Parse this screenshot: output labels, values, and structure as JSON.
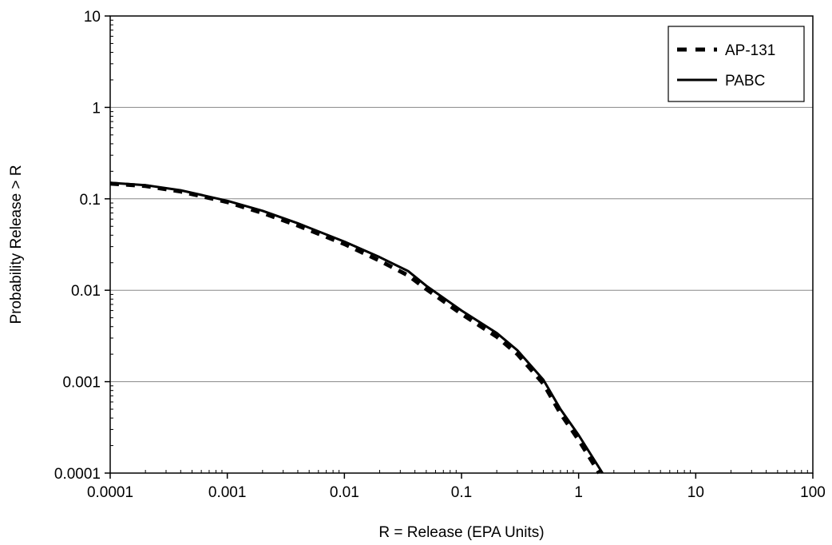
{
  "chart_data": {
    "type": "line",
    "xlabel": "R = Release (EPA Units)",
    "ylabel": "Probability Release > R",
    "x_scale": "log",
    "y_scale": "log",
    "xlim": [
      0.0001,
      100
    ],
    "ylim": [
      0.0001,
      10
    ],
    "x_ticks": [
      "0.0001",
      "0.001",
      "0.01",
      "0.1",
      "1",
      "10",
      "100"
    ],
    "y_ticks": [
      "0.0001",
      "0.001",
      "0.01",
      "0.1",
      "1",
      "10"
    ],
    "grid": "horizontal major gridlines",
    "legend_position": "top-right",
    "series": [
      {
        "name": "AP-131",
        "style": "dashed",
        "color": "#000000",
        "points": [
          [
            0.0001,
            0.147
          ],
          [
            0.0002,
            0.138
          ],
          [
            0.0004,
            0.12
          ],
          [
            0.001,
            0.092
          ],
          [
            0.002,
            0.07
          ],
          [
            0.004,
            0.051
          ],
          [
            0.01,
            0.032
          ],
          [
            0.02,
            0.021
          ],
          [
            0.035,
            0.0145
          ],
          [
            0.05,
            0.0103
          ],
          [
            0.1,
            0.0055
          ],
          [
            0.2,
            0.0031
          ],
          [
            0.3,
            0.002
          ],
          [
            0.5,
            0.00095
          ],
          [
            0.7,
            0.00045
          ],
          [
            1.0,
            0.00023
          ],
          [
            1.5,
            0.0001
          ]
        ]
      },
      {
        "name": "PABC",
        "style": "solid",
        "color": "#000000",
        "points": [
          [
            0.0001,
            0.15
          ],
          [
            0.0002,
            0.141
          ],
          [
            0.0004,
            0.124
          ],
          [
            0.001,
            0.095
          ],
          [
            0.002,
            0.074
          ],
          [
            0.004,
            0.054
          ],
          [
            0.01,
            0.034
          ],
          [
            0.02,
            0.023
          ],
          [
            0.035,
            0.0162
          ],
          [
            0.05,
            0.0112
          ],
          [
            0.1,
            0.006
          ],
          [
            0.2,
            0.0034
          ],
          [
            0.3,
            0.0022
          ],
          [
            0.5,
            0.00105
          ],
          [
            0.7,
            0.0005
          ],
          [
            1.0,
            0.00026
          ],
          [
            1.6,
            0.0001
          ]
        ]
      }
    ]
  }
}
